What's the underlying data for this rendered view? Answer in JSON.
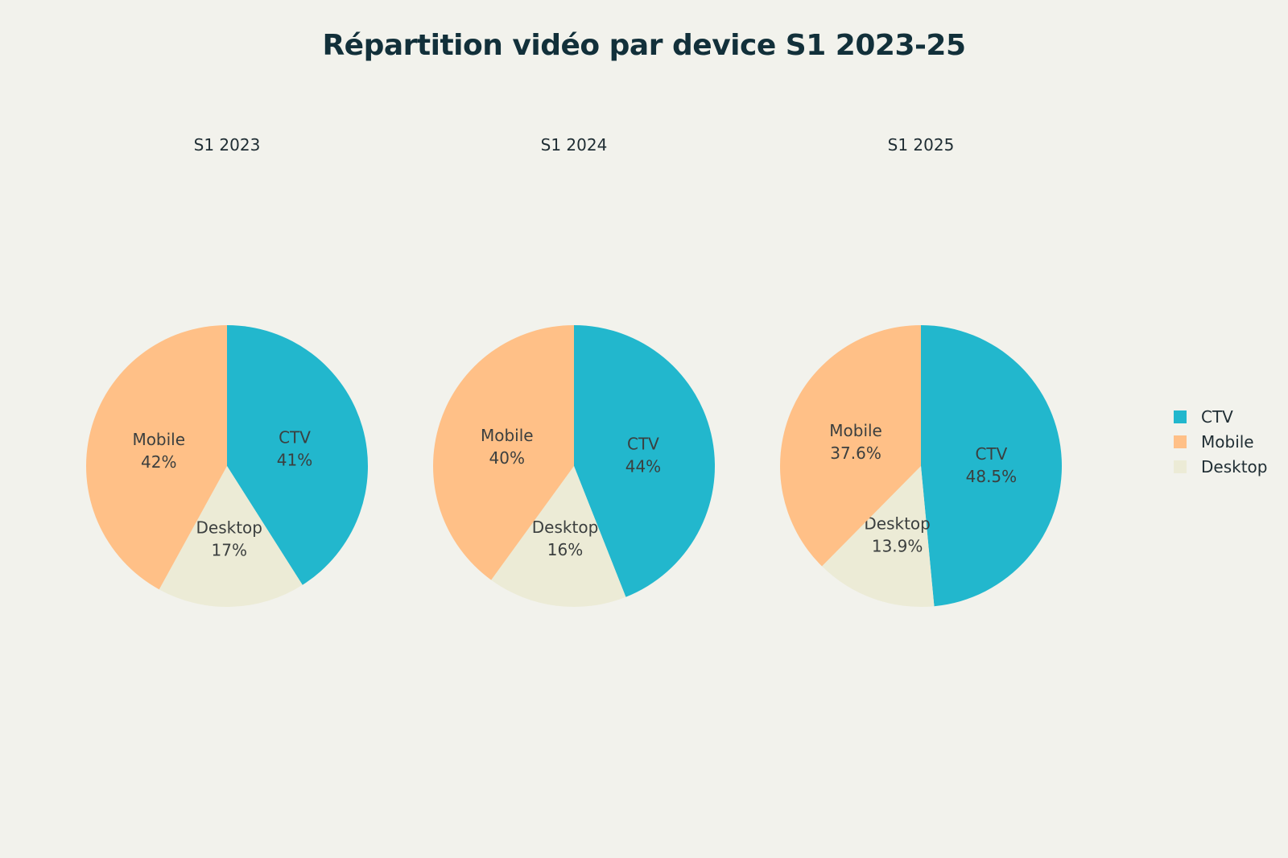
{
  "chart_data": {
    "type": "pie",
    "title": "Répartition vidéo par device S1 2023-25",
    "legend": [
      "CTV",
      "Mobile",
      "Desktop"
    ],
    "legend_position": "right",
    "colors": {
      "CTV": "#22b7cd",
      "Mobile": "#ffc087",
      "Desktop": "#ecebd6"
    },
    "pies": [
      {
        "name": "S1 2023",
        "slices": [
          {
            "label": "CTV",
            "value": 41,
            "text": "41%"
          },
          {
            "label": "Desktop",
            "value": 17,
            "text": "17%"
          },
          {
            "label": "Mobile",
            "value": 42,
            "text": "42%"
          }
        ]
      },
      {
        "name": "S1 2024",
        "slices": [
          {
            "label": "CTV",
            "value": 44,
            "text": "44%"
          },
          {
            "label": "Desktop",
            "value": 16,
            "text": "16%"
          },
          {
            "label": "Mobile",
            "value": 40,
            "text": "40%"
          }
        ]
      },
      {
        "name": "S1 2025",
        "slices": [
          {
            "label": "CTV",
            "value": 48.5,
            "text": "48.5%"
          },
          {
            "label": "Desktop",
            "value": 13.9,
            "text": "13.9%"
          },
          {
            "label": "Mobile",
            "value": 37.6,
            "text": "37.6%"
          }
        ]
      }
    ]
  }
}
